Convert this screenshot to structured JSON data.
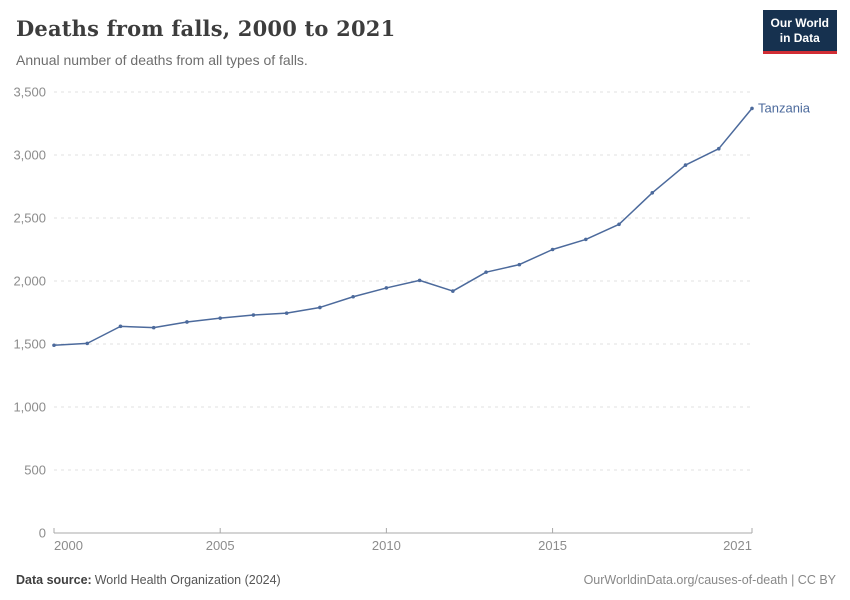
{
  "header": {
    "title": "Deaths from falls, 2000 to 2021",
    "subtitle": "Annual number of deaths from all types of falls.",
    "logo": {
      "line1": "Our World",
      "line2": "in Data"
    }
  },
  "chart_data": {
    "type": "line",
    "title": "Deaths from falls, 2000 to 2021",
    "subtitle": "Annual number of deaths from all types of falls.",
    "xlabel": "",
    "ylabel": "",
    "xlim": [
      2000,
      2021
    ],
    "ylim": [
      0,
      3500
    ],
    "x_ticks": [
      2000,
      2005,
      2010,
      2015,
      2021
    ],
    "y_ticks": [
      0,
      500,
      1000,
      1500,
      2000,
      2500,
      3000,
      3500
    ],
    "grid": "horizontal-dashed",
    "legend_position": "end-of-line-label",
    "series": [
      {
        "name": "Tanzania",
        "x": [
          2000,
          2001,
          2002,
          2003,
          2004,
          2005,
          2006,
          2007,
          2008,
          2009,
          2010,
          2011,
          2012,
          2013,
          2014,
          2015,
          2016,
          2017,
          2018,
          2019,
          2020,
          2021
        ],
        "values": [
          1490,
          1505,
          1640,
          1630,
          1675,
          1705,
          1730,
          1745,
          1790,
          1875,
          1945,
          2005,
          1920,
          2070,
          2130,
          2250,
          2330,
          2450,
          2700,
          2920,
          3050,
          3370
        ]
      }
    ]
  },
  "footer": {
    "data_source_label": "Data source:",
    "data_source_value": "World Health Organization (2024)",
    "attribution": "OurWorldinData.org/causes-of-death | CC BY"
  },
  "colors": {
    "series_line": "#4c6a9c",
    "end_label": "#4c6a9c",
    "grid_line": "#e0e0e0",
    "axis_line": "#a8a8a8",
    "tick_label": "#8c8c8c",
    "logo_bg": "#16314f",
    "logo_underline": "#d12d35"
  }
}
